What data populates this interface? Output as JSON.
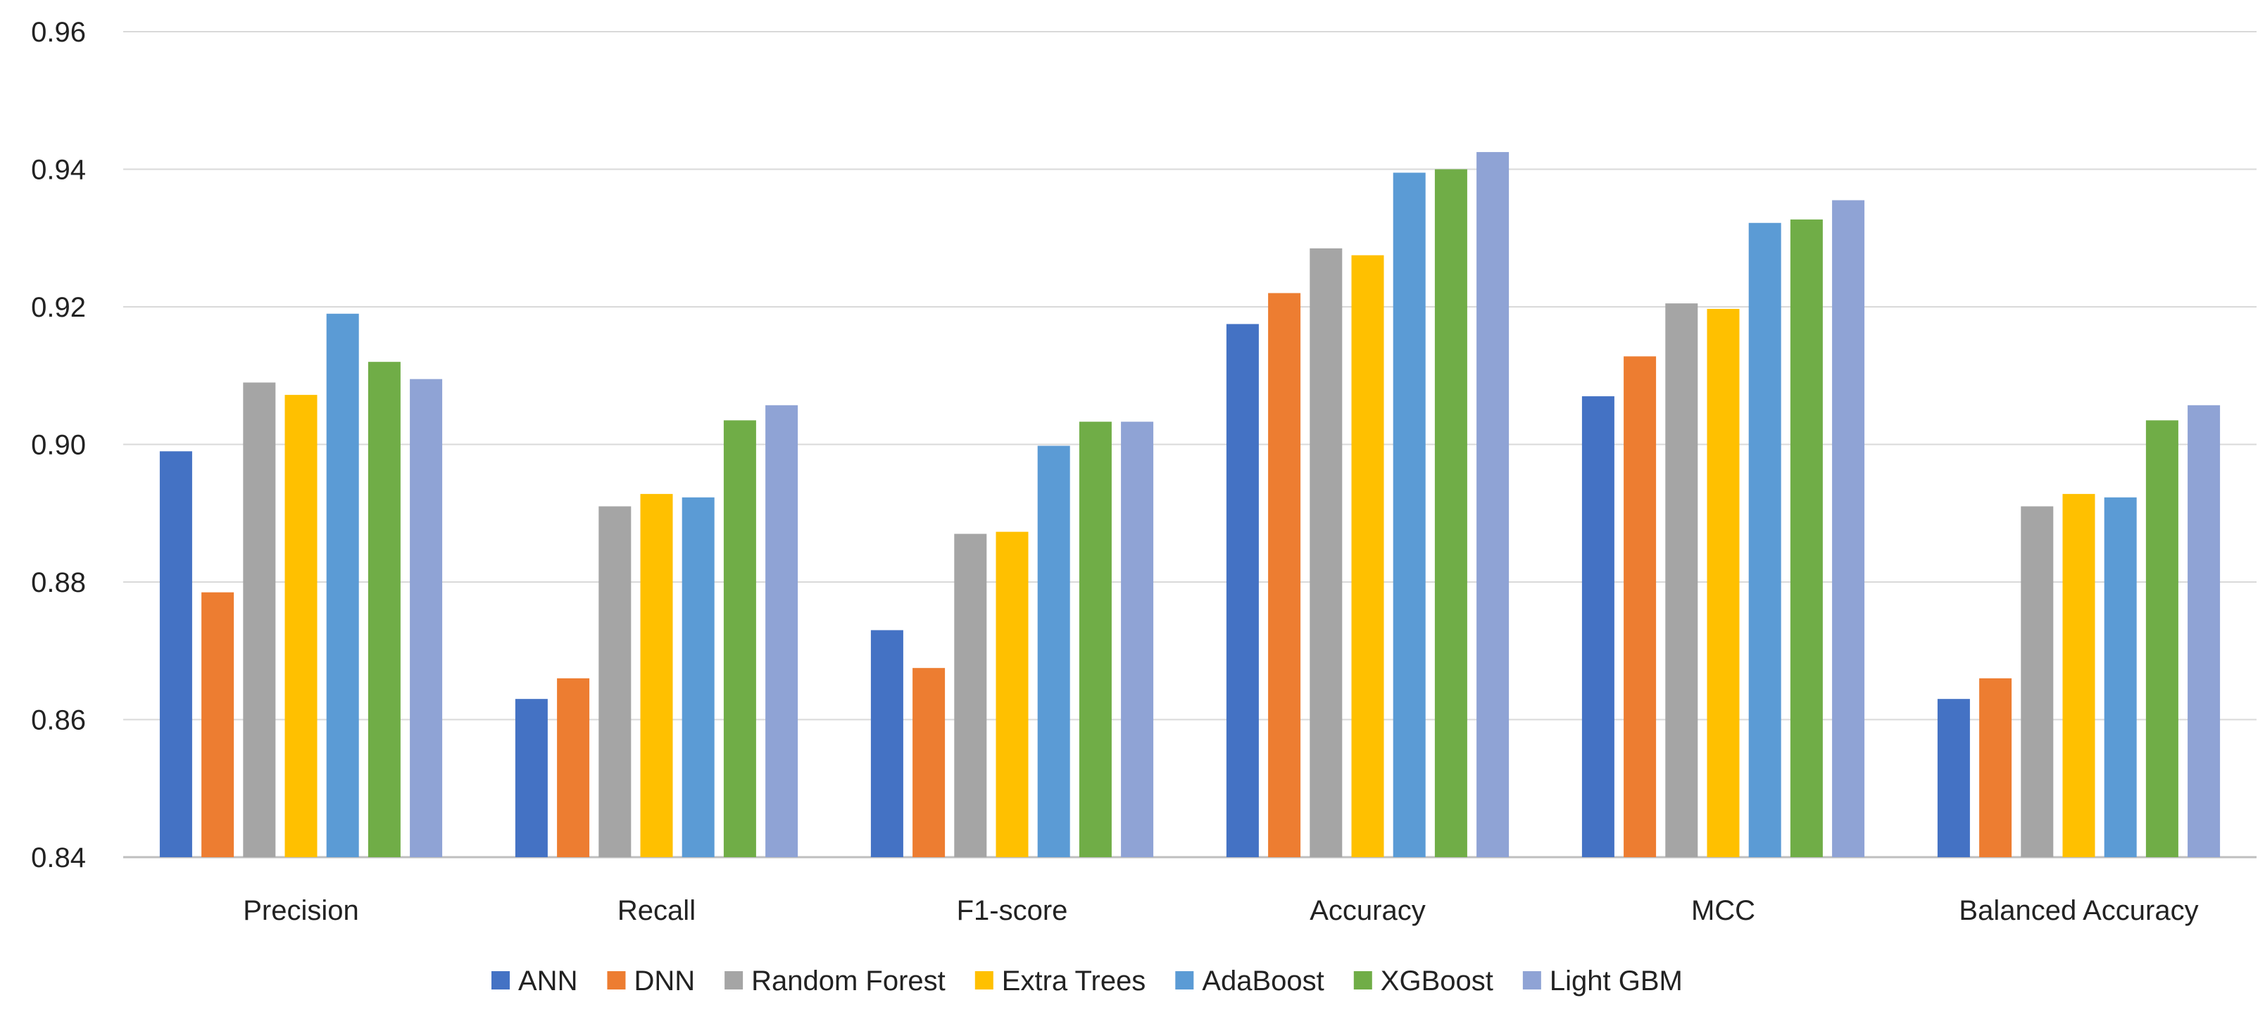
{
  "chart_data": {
    "type": "bar",
    "title": "",
    "xlabel": "",
    "ylabel": "",
    "ylim": [
      0.84,
      0.96
    ],
    "yticks": [
      "0.84",
      "0.86",
      "0.88",
      "0.90",
      "0.92",
      "0.94",
      "0.96"
    ],
    "grid": true,
    "legend_position": "bottom",
    "categories": [
      "Precision",
      "Recall",
      "F1-score",
      "Accuracy",
      "MCC",
      "Balanced Accuracy"
    ],
    "series": [
      {
        "name": "ANN",
        "color": "#4472C4",
        "values": [
          0.899,
          0.863,
          0.873,
          0.9175,
          0.907,
          0.863
        ]
      },
      {
        "name": "DNN",
        "color": "#ED7D31",
        "values": [
          0.8785,
          0.866,
          0.8675,
          0.922,
          0.9128,
          0.866
        ]
      },
      {
        "name": "Random Forest",
        "color": "#A5A5A5",
        "values": [
          0.909,
          0.891,
          0.887,
          0.9285,
          0.9205,
          0.891
        ]
      },
      {
        "name": "Extra Trees",
        "color": "#FFC000",
        "values": [
          0.9072,
          0.8928,
          0.8873,
          0.9275,
          0.9197,
          0.8928
        ]
      },
      {
        "name": "AdaBoost",
        "color": "#5B9BD5",
        "values": [
          0.919,
          0.8923,
          0.8998,
          0.9395,
          0.9322,
          0.8923
        ]
      },
      {
        "name": "XGBoost",
        "color": "#70AD47",
        "values": [
          0.912,
          0.9035,
          0.9033,
          0.94,
          0.9327,
          0.9035
        ]
      },
      {
        "name": "Light GBM",
        "color": "#8FA3D5",
        "values": [
          0.9095,
          0.9057,
          0.9033,
          0.9425,
          0.9355,
          0.9057
        ]
      }
    ]
  }
}
